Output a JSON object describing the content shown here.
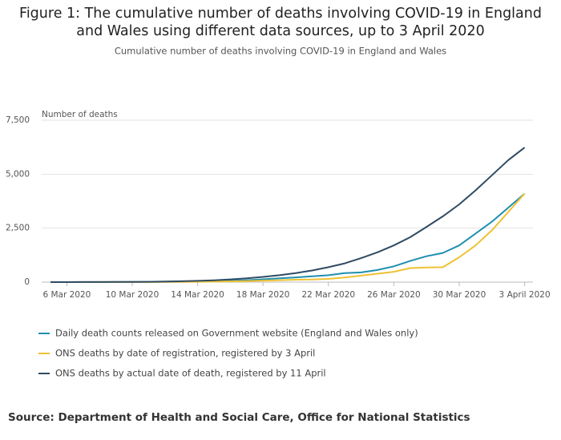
{
  "chart_data": {
    "type": "line",
    "title": "Figure 1: The cumulative number of deaths involving COVID-19 in England and Wales using different data sources, up to 3 April 2020",
    "subtitle": "Cumulative number of deaths involving COVID-19 in England and Wales",
    "y_label": "Number of deaths",
    "source": "Source: Department of Health and Social Care, Office for National Statistics",
    "categories": [
      null,
      "6 Mar 2020",
      null,
      null,
      null,
      "10 Mar 2020",
      null,
      null,
      null,
      "14 Mar 2020",
      null,
      null,
      null,
      "18 Mar 2020",
      null,
      null,
      null,
      "22 Mar 2020",
      null,
      null,
      null,
      "26 Mar 2020",
      null,
      null,
      null,
      "30 Mar 2020",
      null,
      null,
      null,
      "3 April 2020"
    ],
    "series": [
      {
        "name": "Daily death counts released on Government website (England and Wales only)",
        "color": "#1f8fb0",
        "values": [
          1,
          1,
          2,
          3,
          4,
          6,
          8,
          10,
          15,
          30,
          40,
          60,
          90,
          130,
          180,
          220,
          270,
          320,
          420,
          450,
          560,
          730,
          980,
          1200,
          1350,
          1700,
          2250,
          2800,
          3450,
          4100
        ]
      },
      {
        "name": "ONS deaths by date of registration, registered by 3 April",
        "color": "#eec233",
        "values": [
          1,
          1,
          1,
          2,
          3,
          4,
          5,
          8,
          10,
          15,
          25,
          35,
          50,
          70,
          90,
          110,
          120,
          150,
          210,
          300,
          390,
          480,
          650,
          680,
          690,
          1150,
          1700,
          2400,
          3250,
          4100
        ]
      },
      {
        "name": "ONS deaths by actual date of death, registered by 11 April",
        "color": "#2f4b63",
        "values": [
          1,
          1,
          2,
          4,
          6,
          10,
          15,
          25,
          40,
          60,
          85,
          125,
          175,
          240,
          320,
          420,
          540,
          690,
          870,
          1110,
          1380,
          1700,
          2080,
          2560,
          3050,
          3600,
          4250,
          4950,
          5650,
          6235
        ]
      }
    ],
    "ylim": [
      0,
      7500
    ],
    "yticks": [
      0,
      {
        "value": 2500,
        "label": "2,500"
      },
      {
        "value": 5000,
        "label": "5,000"
      },
      {
        "value": 7500,
        "label": "7,500"
      }
    ],
    "grid": true
  }
}
